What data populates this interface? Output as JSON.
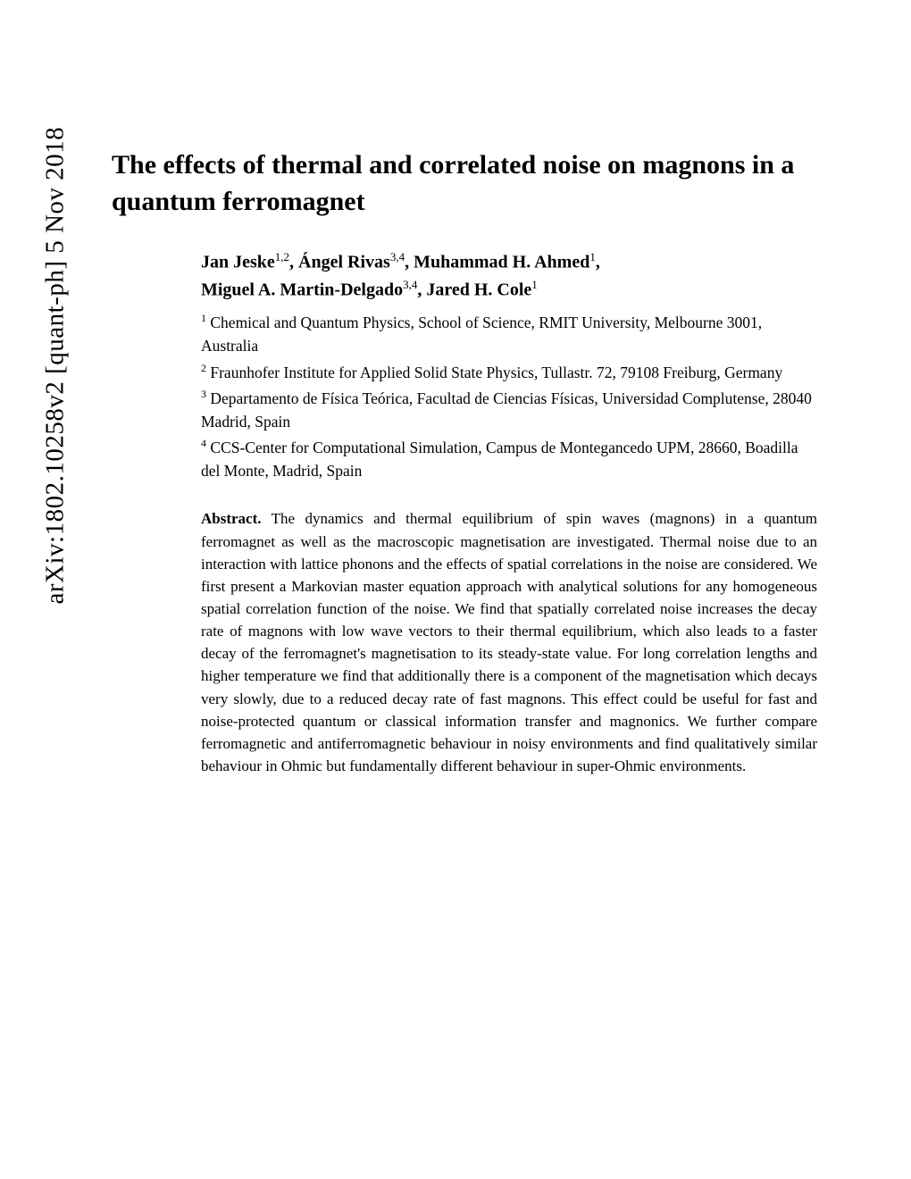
{
  "arxiv_id": "arXiv:1802.10258v2  [quant-ph]  5 Nov 2018",
  "title": "The effects of thermal and correlated noise on magnons in a quantum ferromagnet",
  "authors_line1_parts": {
    "a1": "Jan Jeske",
    "s1": "1,2",
    "a2": ", Ángel Rivas",
    "s2": "3,4",
    "a3": ", Muhammad H. Ahmed",
    "s3": "1",
    "a4": ","
  },
  "authors_line2_parts": {
    "a1": "Miguel A. Martin-Delgado",
    "s1": "3,4",
    "a2": ", Jared H. Cole",
    "s2": "1"
  },
  "affiliations": {
    "aff1_sup": "1",
    "aff1": " Chemical and Quantum Physics, School of Science, RMIT University, Melbourne 3001, Australia",
    "aff2_sup": "2",
    "aff2": " Fraunhofer Institute for Applied Solid State Physics, Tullastr. 72, 79108 Freiburg, Germany",
    "aff3_sup": "3",
    "aff3": " Departamento de Física Teórica, Facultad de Ciencias Físicas, Universidad Complutense, 28040 Madrid, Spain",
    "aff4_sup": "4",
    "aff4": " CCS-Center for Computational Simulation, Campus de Montegancedo UPM, 28660, Boadilla del Monte, Madrid, Spain"
  },
  "abstract_label": "Abstract.",
  "abstract_text": "  The dynamics and thermal equilibrium of spin waves (magnons) in a quantum ferromagnet as well as the macroscopic magnetisation are investigated. Thermal noise due to an interaction with lattice phonons and the effects of spatial correlations in the noise are considered. We first present a Markovian master equation approach with analytical solutions for any homogeneous spatial correlation function of the noise. We find that spatially correlated noise increases the decay rate of magnons with low wave vectors to their thermal equilibrium, which also leads to a faster decay of the ferromagnet's magnetisation to its steady-state value. For long correlation lengths and higher temperature we find that additionally there is a component of the magnetisation which decays very slowly, due to a reduced decay rate of fast magnons. This effect could be useful for fast and noise-protected quantum or classical information transfer and magnonics. We further compare ferromagnetic and antiferromagnetic behaviour in noisy environments and find qualitatively similar behaviour in Ohmic but fundamentally different behaviour in super-Ohmic environments."
}
